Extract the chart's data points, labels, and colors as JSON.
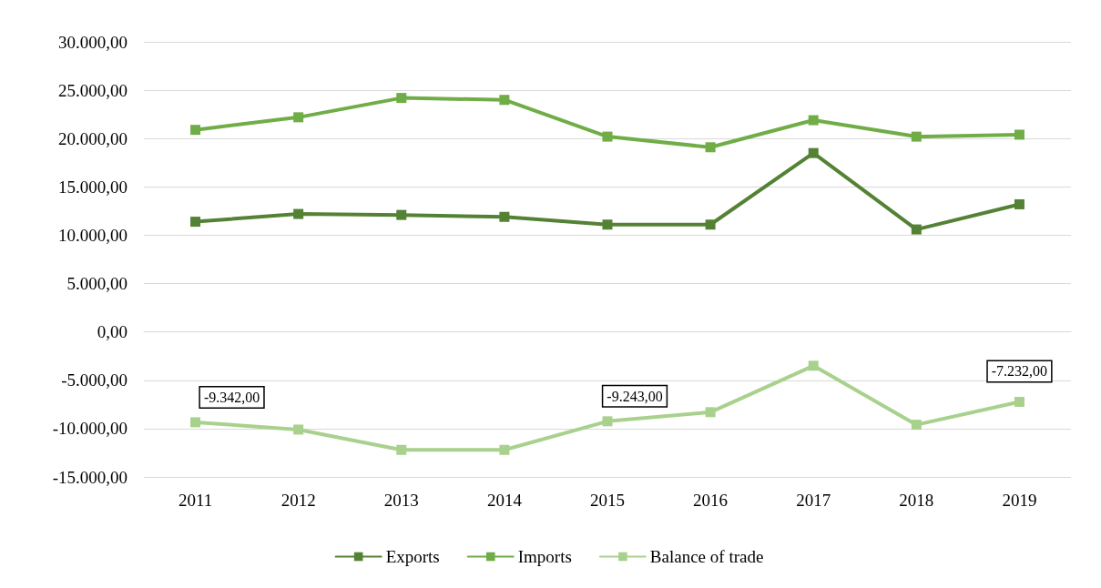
{
  "chart_data": {
    "type": "line",
    "categories": [
      "2011",
      "2012",
      "2013",
      "2014",
      "2015",
      "2016",
      "2017",
      "2018",
      "2019"
    ],
    "series": [
      {
        "name": "Exports",
        "color": "#548235",
        "values": [
          11400,
          12200,
          12100,
          11900,
          11100,
          11100,
          18500,
          10600,
          13200
        ]
      },
      {
        "name": "Imports",
        "color": "#70ad47",
        "values": [
          20900,
          22200,
          24200,
          24000,
          20200,
          19100,
          21900,
          20200,
          20400
        ]
      },
      {
        "name": "Balance of trade",
        "color": "#a9d18e",
        "values": [
          -9342,
          -10100,
          -12200,
          -12200,
          -9243,
          -8300,
          -3500,
          -9600,
          -7232
        ],
        "value_labels": [
          "-9.342,00",
          null,
          null,
          null,
          "-9.243,00",
          null,
          null,
          null,
          "-7.232,00"
        ]
      }
    ],
    "ylim": [
      -15000,
      30000
    ],
    "yticks": [
      {
        "value": -15000,
        "label": "-15.000,00"
      },
      {
        "value": -10000,
        "label": "-10.000,00"
      },
      {
        "value": -5000,
        "label": "-5.000,00"
      },
      {
        "value": 0,
        "label": "0,00"
      },
      {
        "value": 5000,
        "label": "5.000,00"
      },
      {
        "value": 10000,
        "label": "10.000,00"
      },
      {
        "value": 15000,
        "label": "15.000,00"
      },
      {
        "value": 20000,
        "label": "20.000,00"
      },
      {
        "value": 25000,
        "label": "25.000,00"
      },
      {
        "value": 30000,
        "label": "30.000,00"
      }
    ],
    "grid": "y",
    "legend": "bottom",
    "marker": "square",
    "line_style": "solid"
  }
}
